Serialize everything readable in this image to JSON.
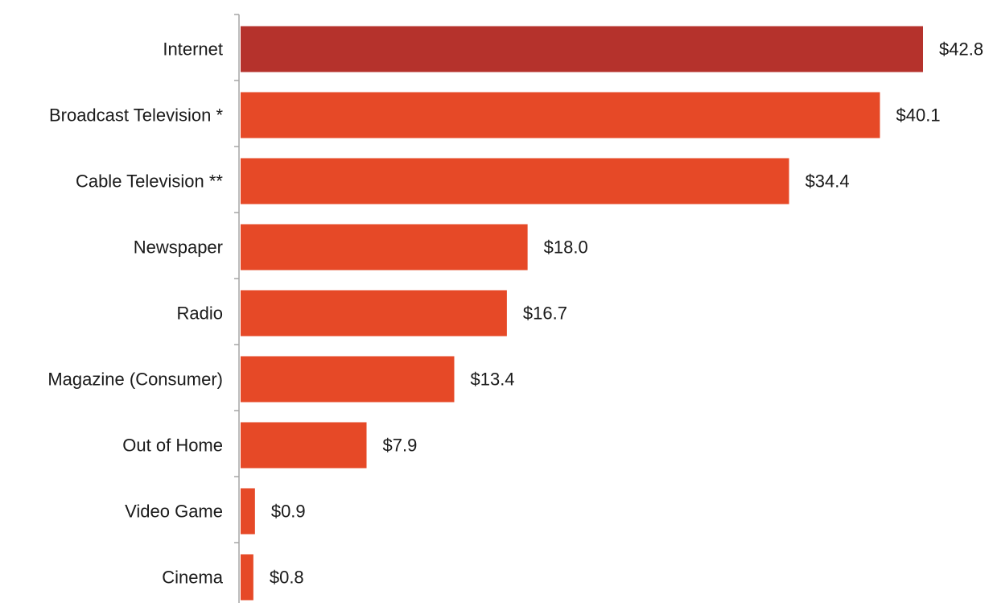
{
  "chart_data": {
    "type": "bar",
    "orientation": "horizontal",
    "categories": [
      "Internet",
      "Broadcast Television *",
      "Cable Television **",
      "Newspaper",
      "Radio",
      "Magazine (Consumer)",
      "Out of Home",
      "Video Game",
      "Cinema"
    ],
    "values": [
      42.8,
      40.1,
      34.4,
      18.0,
      16.7,
      13.4,
      7.9,
      0.9,
      0.8
    ],
    "value_labels": [
      "$42.8",
      "$40.1",
      "$34.4",
      "$18.0",
      "$16.7",
      "$13.4",
      "$7.9",
      "$0.9",
      "$0.8"
    ],
    "bar_colors": [
      "#b5322c",
      "#e64927",
      "#e64927",
      "#e64927",
      "#e64927",
      "#e64927",
      "#e64927",
      "#e64927",
      "#e64927"
    ],
    "title": "",
    "xlabel": "",
    "ylabel": "",
    "xlim": [
      0,
      42.8
    ],
    "grid": false,
    "legend": "none"
  },
  "colors": {
    "highlight_bar": "#b5322c",
    "bar": "#e64927",
    "axis": "#a6a6a6",
    "text": "#1a1a1a"
  }
}
